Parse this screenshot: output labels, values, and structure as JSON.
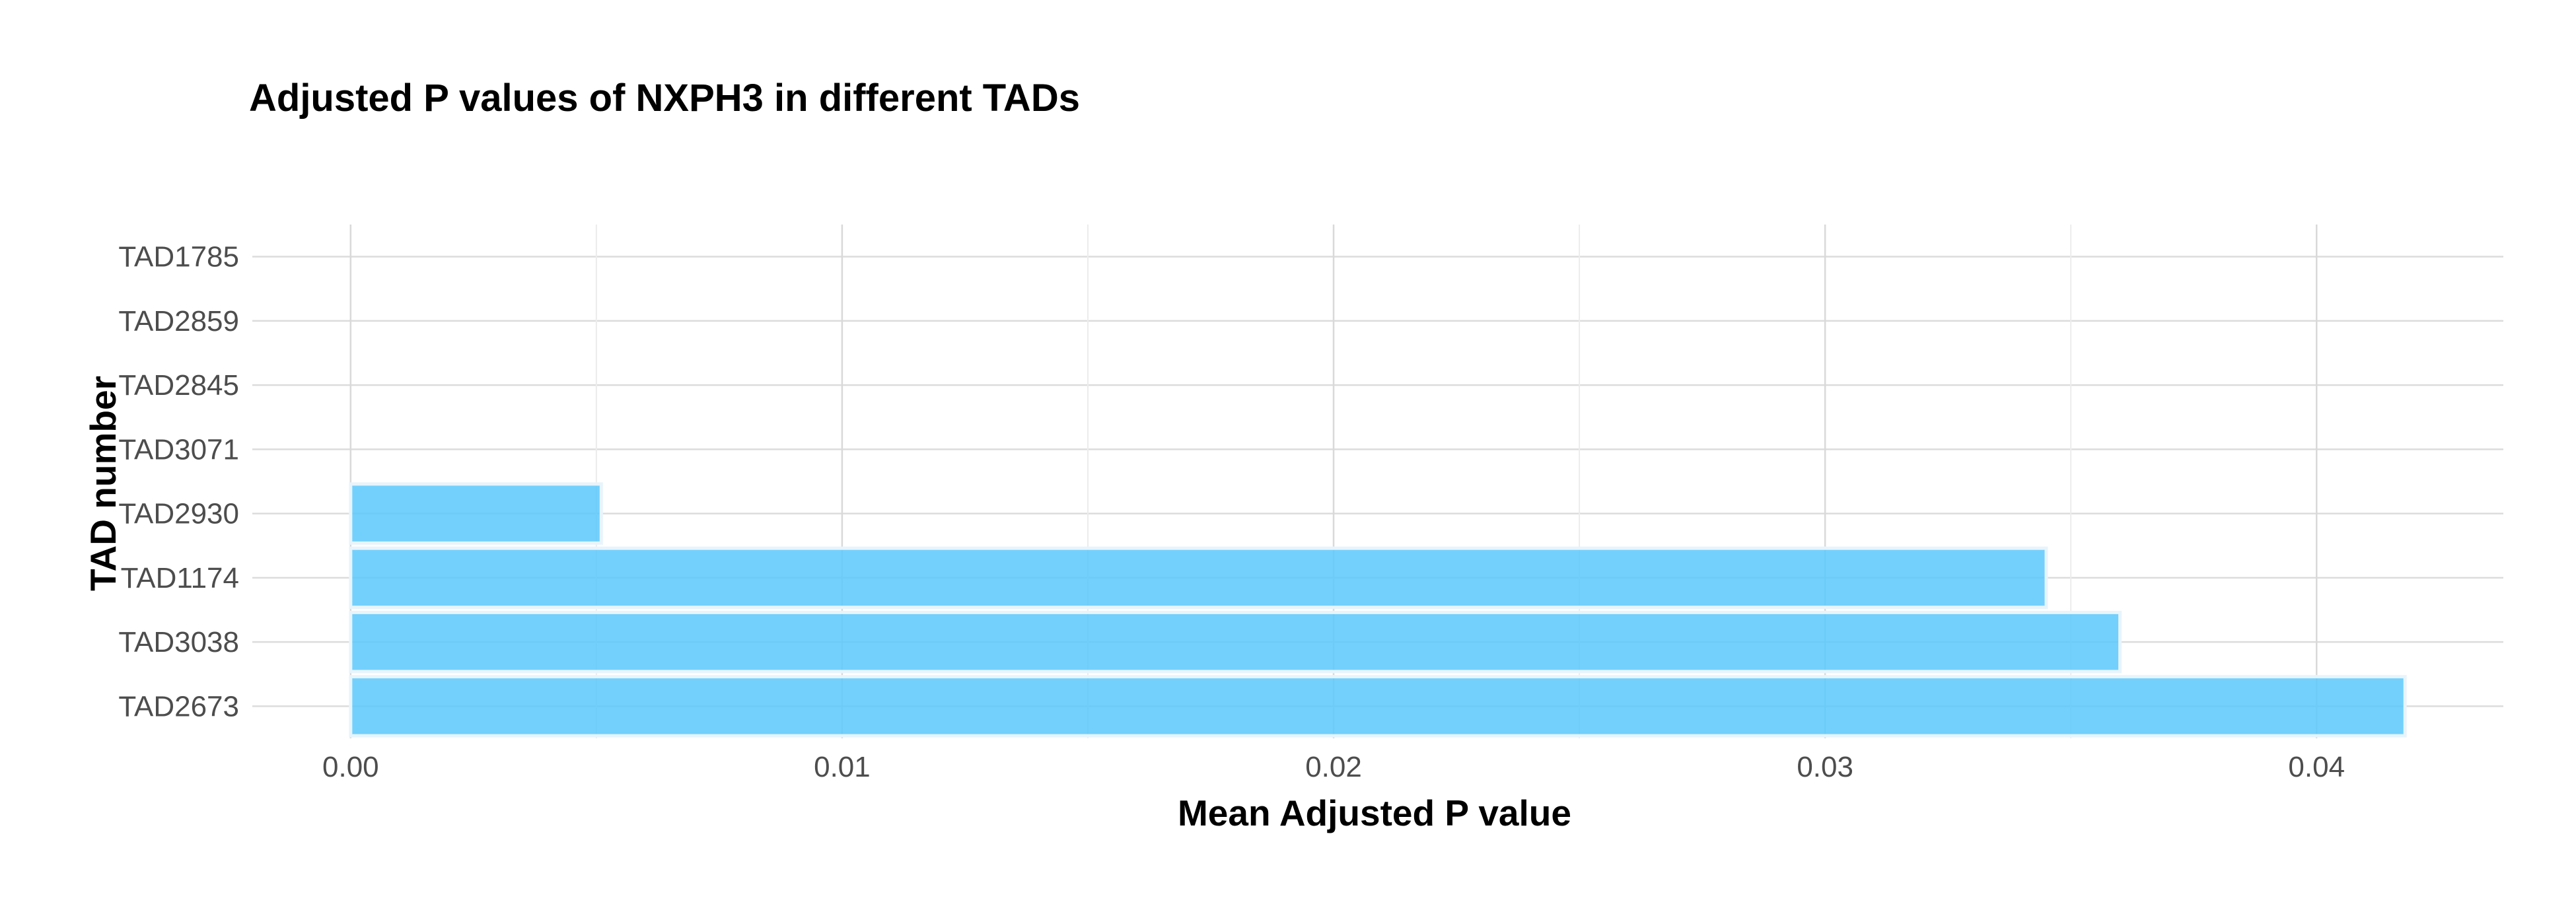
{
  "chart_data": {
    "type": "bar",
    "orientation": "horizontal",
    "title": "Adjusted P values of NXPH3 in different TADs",
    "xlabel": "Mean Adjusted P value",
    "ylabel": "TAD number",
    "categories": [
      "TAD1785",
      "TAD2859",
      "TAD2845",
      "TAD3071",
      "TAD2930",
      "TAD1174",
      "TAD3038",
      "TAD2673"
    ],
    "values": [
      0.0,
      0.0,
      0.0,
      0.0,
      0.0051,
      0.0345,
      0.036,
      0.0418
    ],
    "xlim": [
      -0.002,
      0.0438
    ],
    "x_ticks": [
      "0.00",
      "0.01",
      "0.02",
      "0.03",
      "0.04"
    ],
    "grid": true,
    "legend": "none",
    "bar_color": "#5bc8fc",
    "bar_edge_color": "#e8f4fb"
  }
}
